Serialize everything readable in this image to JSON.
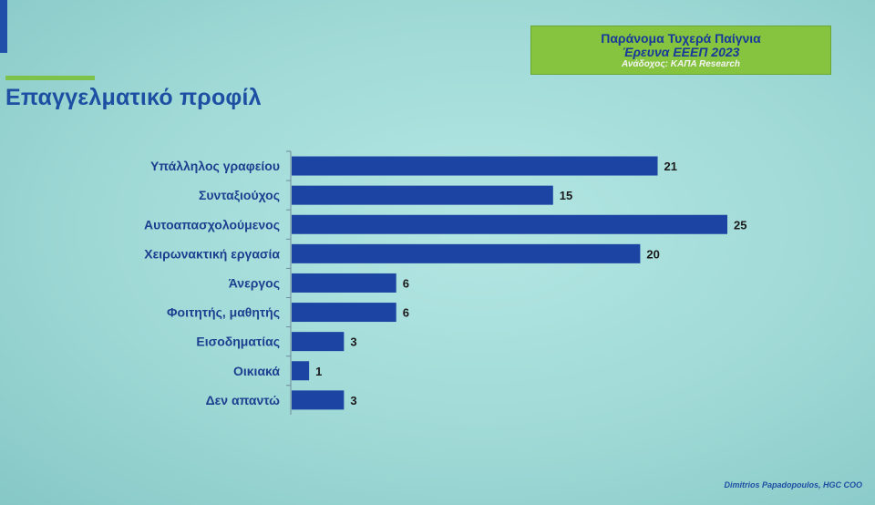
{
  "header": {
    "title": "Επαγγελματικό προφίλ",
    "box_line1": "Παράνομα Τυχερά Παίγνια",
    "box_line2": "Έρευνα ΕΕΕΠ 2023",
    "box_line3": "Ανάδοχος: ΚΑΠΑ Research"
  },
  "footer": {
    "credit": "Dimitrios Papadopoulos, HGC COO"
  },
  "colors": {
    "bar": "#1b44a3",
    "title": "#1d4fa3",
    "box": "#86c43f",
    "accent": "#7dc24a"
  },
  "chart_data": {
    "type": "bar",
    "orientation": "horizontal",
    "categories": [
      "Υπάλληλος γραφείου",
      "Συνταξιούχος",
      "Αυτοαπασχολούμενος",
      "Χειρωνακτική εργασία",
      "Άνεργος",
      "Φοιτητής, μαθητής",
      "Εισοδηματίας",
      "Οικιακά",
      "Δεν απαντώ"
    ],
    "values": [
      21,
      15,
      25,
      20,
      6,
      6,
      3,
      1,
      3
    ],
    "xlim": [
      0,
      25
    ],
    "grid": false,
    "legend": "none"
  }
}
